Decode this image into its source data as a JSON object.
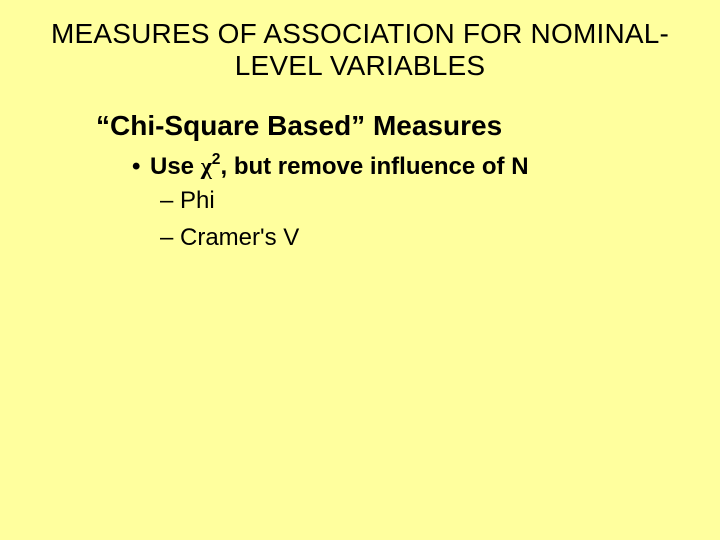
{
  "slide": {
    "background_color": "#ffff9e",
    "text_color": "#000000",
    "title_line1": "MEASURES OF ASSOCIATION FOR NOMINAL-",
    "title_line2": "LEVEL VARIABLES",
    "title_fontsize": 28,
    "title_fontweight": "normal",
    "subtitle": "“Chi-Square Based” Measures",
    "subtitle_fontsize": 28,
    "subtitle_fontweight": "bold",
    "bullet1_prefix": "•  ",
    "bullet1_text_a": "Use ",
    "bullet1_chi": "χ",
    "bullet1_sup": "2",
    "bullet1_text_b": ", but remove influence of N",
    "bullet1_fontsize": 24,
    "bullet1_fontweight": "bold",
    "sub_items": [
      {
        "dash": "– ",
        "label": "Phi"
      },
      {
        "dash": "– ",
        "label": "Cramer's V"
      }
    ],
    "sub_fontsize": 24,
    "sub_fontweight": "normal"
  }
}
